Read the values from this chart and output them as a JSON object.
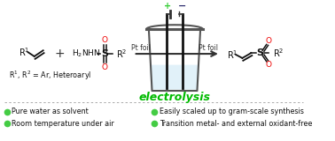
{
  "bg_color": "#ffffff",
  "red_color": "#ee0000",
  "green_color": "#00aa00",
  "black_color": "#111111",
  "electrolysis_color": "#00bb00",
  "bullet_color": "#44cc44",
  "plus_color": "#33cc33",
  "bullet_points_left": [
    "Pure water as solvent",
    "Room temperature under air"
  ],
  "bullet_points_right": [
    "Easily scaled up to gram-scale synthesis",
    "Transition metal- and external oxidant-free"
  ],
  "electrolysis_text": "electrolysis",
  "pt_foil_label": "Pt foil"
}
